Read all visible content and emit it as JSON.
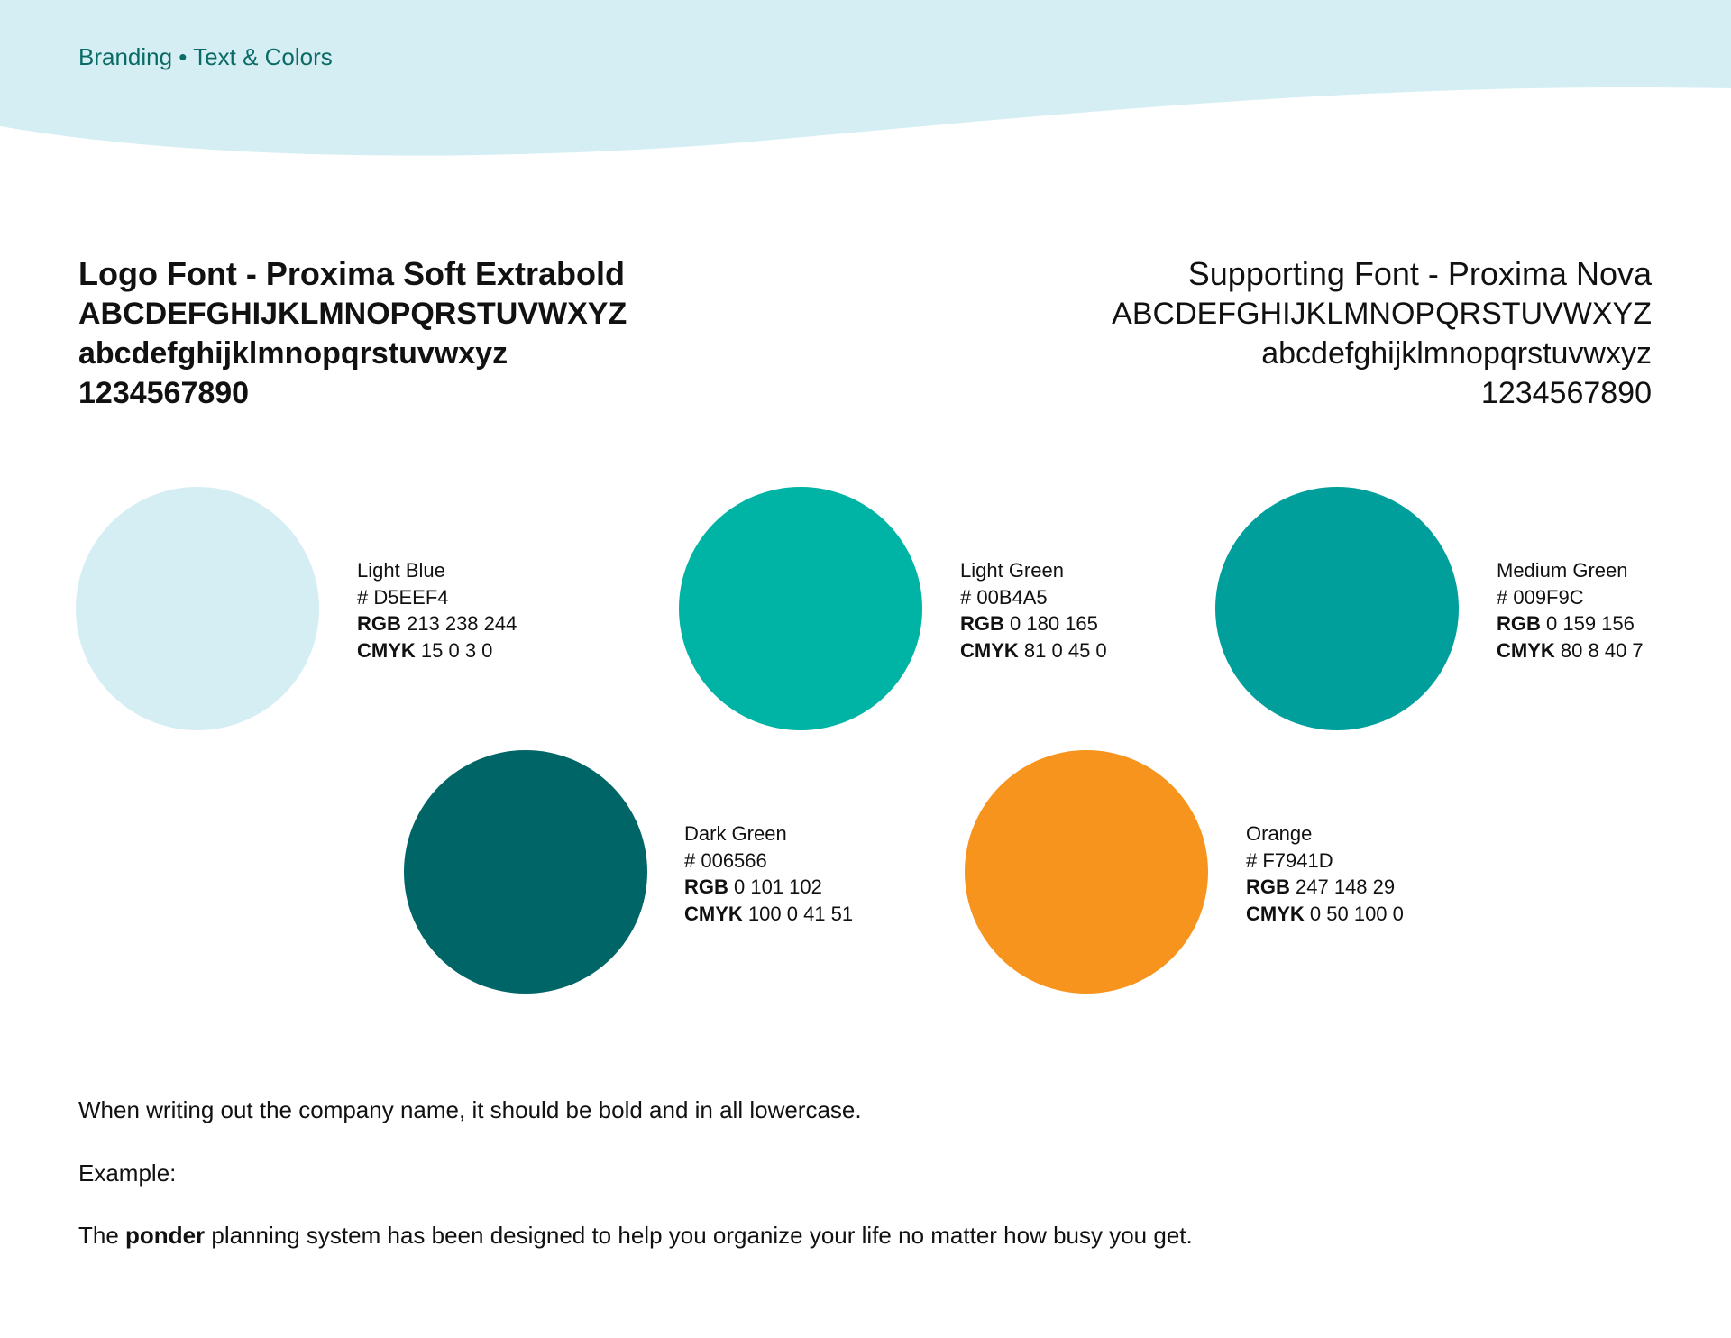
{
  "header": {
    "breadcrumb": "Branding • Text & Colors"
  },
  "fonts": [
    {
      "title": "Logo Font - Proxima Soft Extrabold",
      "uppercase": "ABCDEFGHIJKLMNOPQRSTUVWXYZ",
      "lowercase": "abcdefghijklmnopqrstuvwxyz",
      "digits": "1234567890"
    },
    {
      "title": "Supporting Font - Proxima Nova",
      "uppercase": "ABCDEFGHIJKLMNOPQRSTUVWXYZ",
      "lowercase": "abcdefghijklmnopqrstuvwxyz",
      "digits": "1234567890"
    }
  ],
  "colors": [
    {
      "name": "Light Blue",
      "hex": "# D5EEF4",
      "rgb": {
        "label": "RGB",
        "value": "213 238 244"
      },
      "cmyk": {
        "label": "CMYK",
        "value": "15 0 3 0"
      }
    },
    {
      "name": "Light Green",
      "hex": "# 00B4A5",
      "rgb": {
        "label": "RGB",
        "value": "0 180 165"
      },
      "cmyk": {
        "label": "CMYK",
        "value": "81 0 45 0"
      }
    },
    {
      "name": "Medium Green",
      "hex": "# 009F9C",
      "rgb": {
        "label": "RGB",
        "value": "0 159 156"
      },
      "cmyk": {
        "label": "CMYK",
        "value": "80 8 40 7"
      }
    },
    {
      "name": "Dark Green",
      "hex": "# 006566",
      "rgb": {
        "label": "RGB",
        "value": "0 101 102"
      },
      "cmyk": {
        "label": "CMYK",
        "value": "100 0 41 51"
      }
    },
    {
      "name": "Orange",
      "hex": "# F7941D",
      "rgb": {
        "label": "RGB",
        "value": "247 148 29"
      },
      "cmyk": {
        "label": "CMYK",
        "value": "0 50 100 0"
      }
    }
  ],
  "body": {
    "instruction": "When writing out the company name, it should be bold and in all lowercase.",
    "example_label": "Example:",
    "example": [
      "The",
      "ponder",
      "planning system has been designed to help you organize your life no matter how busy you get."
    ]
  }
}
